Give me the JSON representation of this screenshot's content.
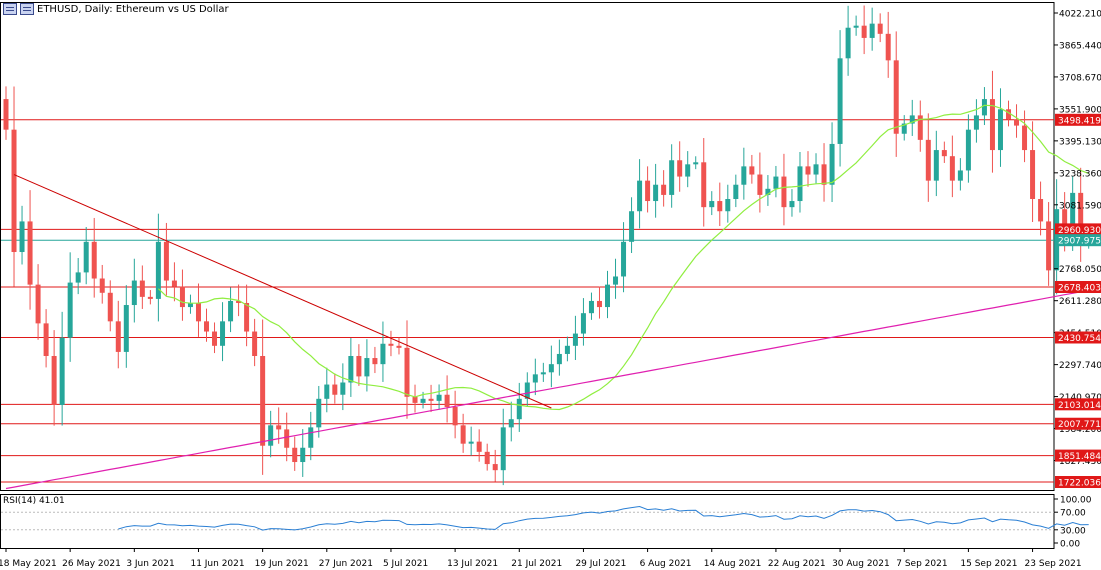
{
  "header": {
    "title": "ETHUSD, Daily:  Ethereum vs US Dollar"
  },
  "rsi": {
    "label": "RSI(14) 41.01",
    "levels": [
      "100.00",
      "70.00",
      "30.00",
      "0.00"
    ]
  },
  "colors": {
    "up": "#26a69a",
    "down": "#ef5350",
    "sma_short": "#90ee40",
    "sma_long": "#e020b0",
    "hline": "#e01818",
    "label_bg": "#e01818",
    "current_price_line": "#26a69a",
    "rsi_line": "#2a7fd4",
    "trendline": "#cc0000"
  },
  "chart_data": {
    "type": "candlestick",
    "title": "ETHUSD, Daily:  Ethereum vs US Dollar",
    "ylim": [
      1722.036,
      4022.21
    ],
    "y_ticks": [
      {
        "value": 4022.21,
        "label": "4022.210"
      },
      {
        "value": 3865.44,
        "label": "3865.440"
      },
      {
        "value": 3708.67,
        "label": "3708.670"
      },
      {
        "value": 3551.9,
        "label": "3551.900"
      },
      {
        "value": 3395.13,
        "label": "3395.130"
      },
      {
        "value": 3238.36,
        "label": "3238.360"
      },
      {
        "value": 3081.59,
        "label": "3081.590"
      },
      {
        "value": 2768.05,
        "label": "2768.050"
      },
      {
        "value": 2611.28,
        "label": "2611.280"
      },
      {
        "value": 2454.51,
        "label": "2454.510"
      },
      {
        "value": 2297.74,
        "label": "2297.740"
      },
      {
        "value": 2140.97,
        "label": "2140.970"
      },
      {
        "value": 1984.2,
        "label": "1984.200"
      },
      {
        "value": 1827.43,
        "label": "1827.430"
      }
    ],
    "horizontal_levels": [
      {
        "value": 3498.419,
        "label": "3498.419"
      },
      {
        "value": 2960.93,
        "label": "2960.930"
      },
      {
        "value": 2678.403,
        "label": "2678.403"
      },
      {
        "value": 2430.754,
        "label": "2430.754"
      },
      {
        "value": 2103.014,
        "label": "2103.014"
      },
      {
        "value": 2007.771,
        "label": "2007.771"
      },
      {
        "value": 1851.484,
        "label": "1851.484"
      },
      {
        "value": 1722.036,
        "label": "1722.036"
      }
    ],
    "current_price": {
      "value": 2907.975,
      "label": "2907.975"
    },
    "x_labels": [
      {
        "index": 0,
        "label": "18 May 2021"
      },
      {
        "index": 8,
        "label": "26 May 2021"
      },
      {
        "index": 16,
        "label": "3 Jun 2021"
      },
      {
        "index": 24,
        "label": "11 Jun 2021"
      },
      {
        "index": 32,
        "label": "19 Jun 2021"
      },
      {
        "index": 40,
        "label": "27 Jun 2021"
      },
      {
        "index": 48,
        "label": "5 Jul 2021"
      },
      {
        "index": 56,
        "label": "13 Jul 2021"
      },
      {
        "index": 64,
        "label": "21 Jul 2021"
      },
      {
        "index": 72,
        "label": "29 Jul 2021"
      },
      {
        "index": 80,
        "label": "6 Aug 2021"
      },
      {
        "index": 88,
        "label": "14 Aug 2021"
      },
      {
        "index": 96,
        "label": "22 Aug 2021"
      },
      {
        "index": 104,
        "label": "30 Aug 2021"
      },
      {
        "index": 112,
        "label": "7 Sep 2021"
      },
      {
        "index": 120,
        "label": "15 Sep 2021"
      },
      {
        "index": 128,
        "label": "23 Sep 2021"
      }
    ],
    "closes": [
      3450,
      2850,
      3000,
      2690,
      2500,
      2340,
      2100,
      2430,
      2700,
      2750,
      2900,
      2720,
      2650,
      2510,
      2360,
      2590,
      2710,
      2630,
      2620,
      2900,
      2710,
      2680,
      2580,
      2600,
      2510,
      2460,
      2390,
      2510,
      2610,
      2600,
      2460,
      2340,
      1900,
      2000,
      1980,
      1890,
      1820,
      1890,
      1990,
      2130,
      2200,
      2150,
      2210,
      2340,
      2240,
      2330,
      2300,
      2400,
      2390,
      2380,
      2140,
      2110,
      2130,
      2120,
      2150,
      2090,
      2000,
      1910,
      1920,
      1870,
      1810,
      1780,
      1990,
      2030,
      2130,
      2210,
      2250,
      2260,
      2300,
      2350,
      2390,
      2450,
      2550,
      2610,
      2580,
      2690,
      2730,
      2900,
      3050,
      3200,
      3100,
      3180,
      3130,
      3300,
      3220,
      3280,
      3290,
      3070,
      3100,
      3050,
      3110,
      3180,
      3270,
      3230,
      3130,
      3160,
      3220,
      3070,
      3100,
      3270,
      3230,
      3280,
      3180,
      3380,
      3800,
      3950,
      3960,
      3900,
      3970,
      3920,
      3790,
      3430,
      3480,
      3520,
      3400,
      3200,
      3350,
      3320,
      3200,
      3250,
      3450,
      3520,
      3600,
      3350,
      3550,
      3500,
      3470,
      3350,
      3110,
      3000,
      2760,
      3060,
      2920,
      3140,
      2900,
      2907.975
    ]
  }
}
